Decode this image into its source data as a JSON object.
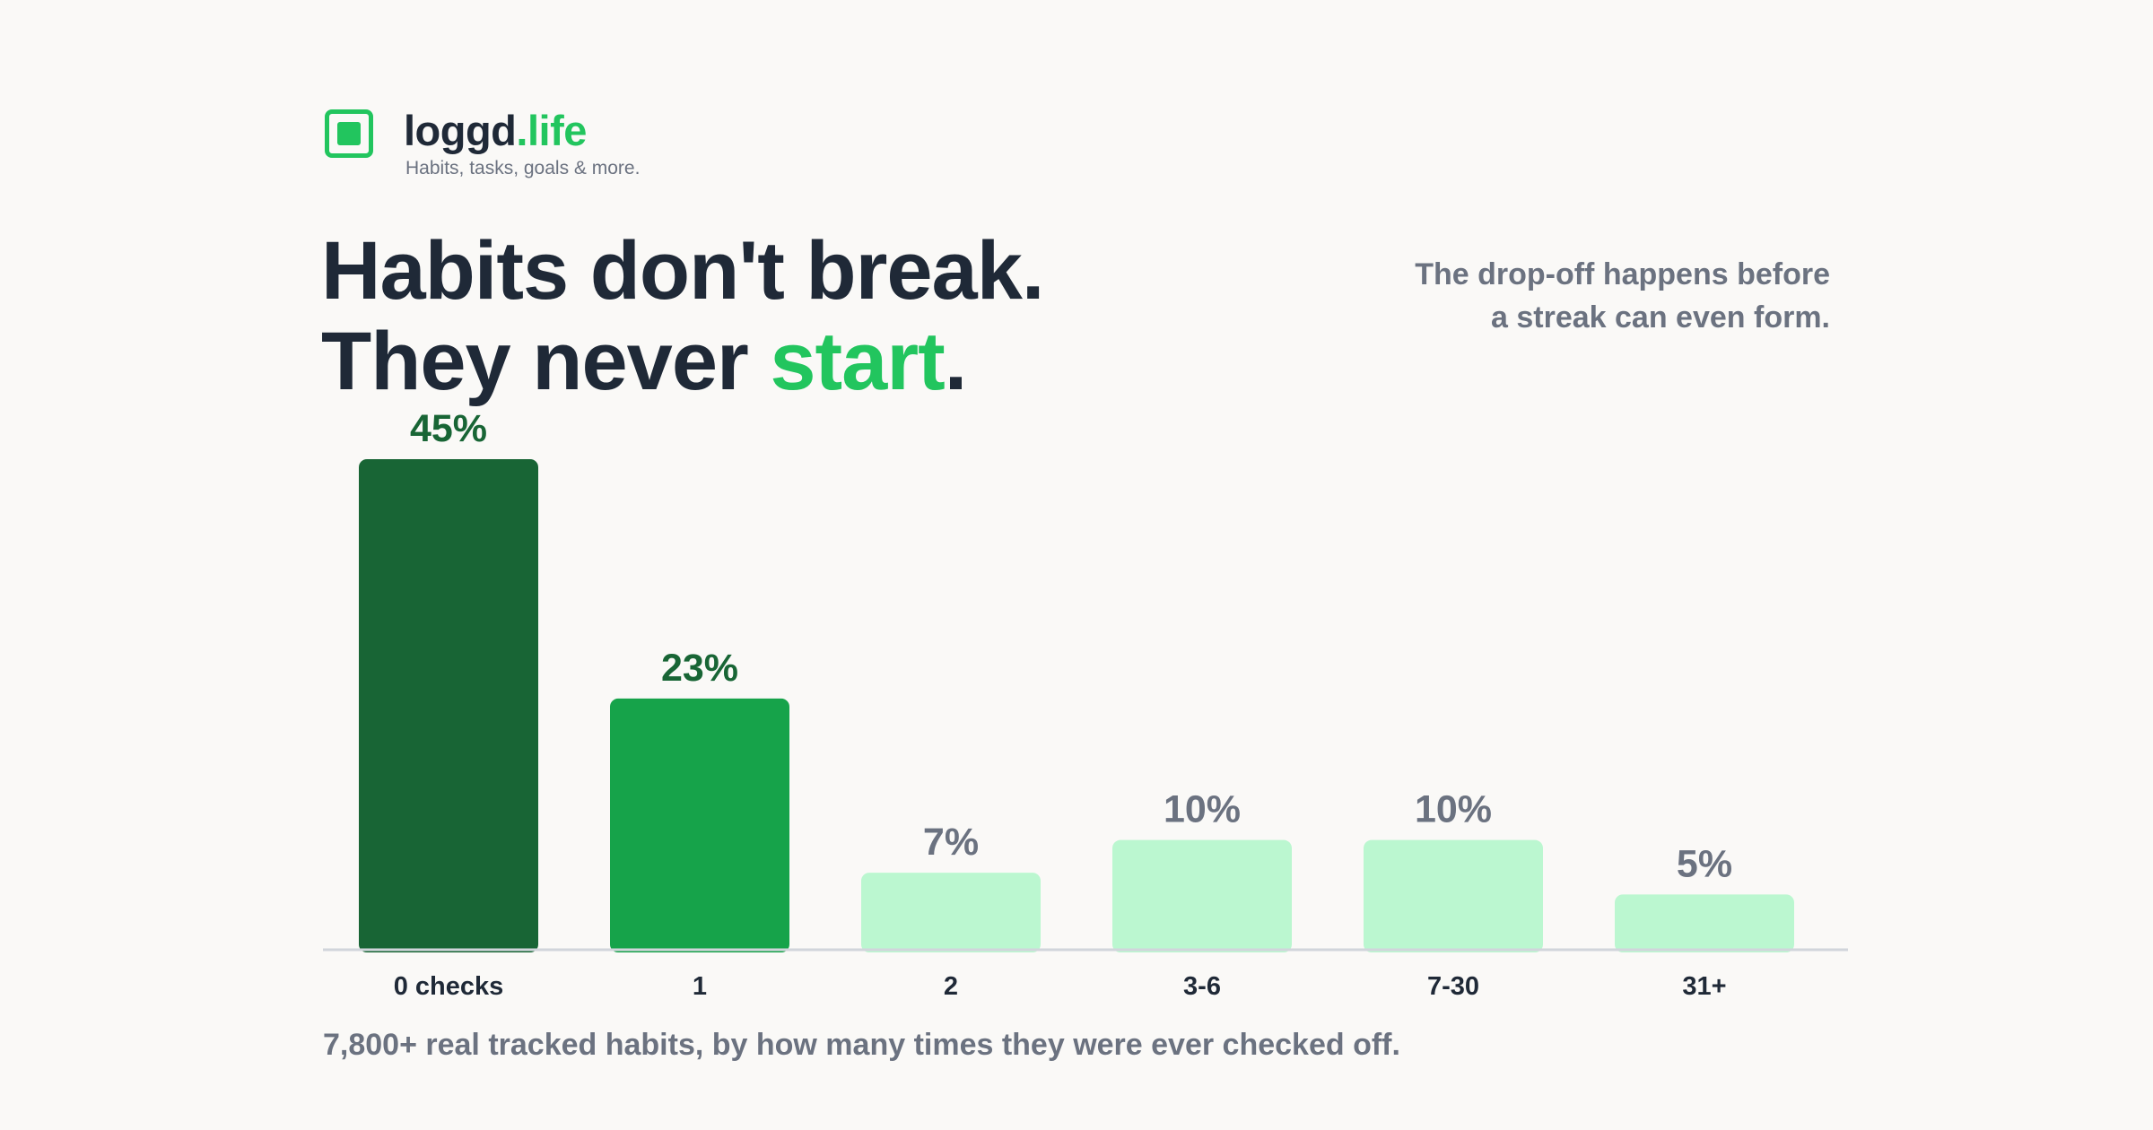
{
  "brand": {
    "name": "loggd",
    "tld": ".life",
    "tagline": "Habits, tasks, goals & more.",
    "icon": "checkbox-square-icon",
    "accent_color": "#22c55e"
  },
  "headline": {
    "line1": "Habits don't break.",
    "line2_prefix": "They never ",
    "line2_highlight": "start",
    "line2_suffix": "."
  },
  "subnote": {
    "line1": "The drop-off happens before",
    "line2": "a streak can even form."
  },
  "caption": "7,800+ real tracked habits, by how many times they were ever checked off.",
  "chart_data": {
    "type": "bar",
    "categories": [
      "0 checks",
      "1",
      "2",
      "3-6",
      "7-30",
      "31+"
    ],
    "values": [
      45,
      23,
      7,
      10,
      10,
      5
    ],
    "value_labels": [
      "45%",
      "23%",
      "7%",
      "10%",
      "10%",
      "5%"
    ],
    "colors": [
      "#186535",
      "#16a34a",
      "#bbf7d0",
      "#bbf7d0",
      "#bbf7d0",
      "#bbf7d0"
    ],
    "label_colors": [
      "#186535",
      "#186535",
      "#6b7280",
      "#6b7280",
      "#6b7280",
      "#6b7280"
    ],
    "ylim": [
      0,
      45
    ],
    "grid": false,
    "title": "",
    "xlabel": "",
    "ylabel": ""
  }
}
